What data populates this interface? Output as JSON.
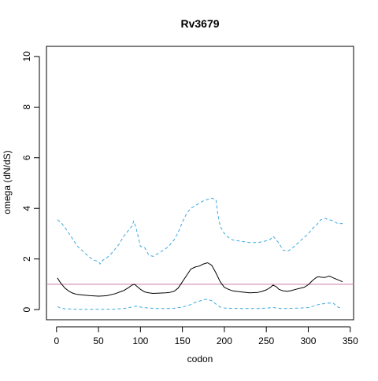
{
  "chart_data": {
    "type": "line",
    "title": "Rv3679",
    "xlabel": "codon",
    "ylabel": "omega (dN/dS)",
    "xlim": [
      -12,
      354
    ],
    "ylim": [
      -0.4,
      10.4
    ],
    "x_ticks": [
      0,
      50,
      100,
      150,
      200,
      250,
      300,
      350
    ],
    "y_ticks": [
      0,
      2,
      4,
      6,
      8,
      10
    ],
    "grid": false,
    "legend": "none",
    "reference_line": {
      "y": 1,
      "color": "#cc79a7"
    },
    "series": [
      {
        "style": "solid",
        "color": "#000000",
        "x": [
          1,
          5,
          10,
          15,
          20,
          25,
          30,
          40,
          50,
          55,
          60,
          70,
          80,
          85,
          90,
          93,
          95,
          100,
          105,
          110,
          115,
          120,
          130,
          135,
          140,
          145,
          150,
          155,
          160,
          165,
          170,
          175,
          180,
          185,
          190,
          195,
          200,
          205,
          210,
          220,
          230,
          240,
          245,
          250,
          255,
          258,
          262,
          265,
          270,
          275,
          280,
          285,
          290,
          295,
          300,
          305,
          310,
          313,
          315,
          320,
          325,
          330,
          335,
          341
        ],
        "y": [
          1.25,
          1.05,
          0.85,
          0.72,
          0.64,
          0.6,
          0.58,
          0.55,
          0.53,
          0.54,
          0.55,
          0.63,
          0.75,
          0.85,
          0.97,
          1.0,
          0.94,
          0.8,
          0.7,
          0.66,
          0.64,
          0.65,
          0.66,
          0.68,
          0.72,
          0.85,
          1.1,
          1.35,
          1.6,
          1.68,
          1.72,
          1.8,
          1.85,
          1.75,
          1.45,
          1.1,
          0.88,
          0.8,
          0.74,
          0.7,
          0.66,
          0.68,
          0.72,
          0.78,
          0.88,
          0.97,
          0.9,
          0.8,
          0.74,
          0.72,
          0.75,
          0.8,
          0.84,
          0.88,
          0.98,
          1.15,
          1.28,
          1.3,
          1.28,
          1.27,
          1.33,
          1.25,
          1.18,
          1.1
        ]
      },
      {
        "style": "dashed",
        "color": "#3fa9df",
        "x": [
          1,
          5,
          10,
          15,
          20,
          25,
          30,
          35,
          40,
          45,
          50,
          52,
          55,
          60,
          65,
          70,
          75,
          80,
          85,
          90,
          92,
          95,
          98,
          100,
          105,
          110,
          115,
          120,
          125,
          130,
          135,
          140,
          145,
          150,
          155,
          160,
          165,
          170,
          175,
          180,
          185,
          190,
          192,
          195,
          200,
          205,
          210,
          220,
          230,
          240,
          245,
          250,
          255,
          258,
          262,
          265,
          270,
          275,
          280,
          285,
          290,
          295,
          300,
          305,
          310,
          315,
          320,
          325,
          330,
          335,
          341
        ],
        "y": [
          3.55,
          3.45,
          3.25,
          3.0,
          2.75,
          2.5,
          2.35,
          2.2,
          2.05,
          1.95,
          1.9,
          1.8,
          1.95,
          2.05,
          2.2,
          2.4,
          2.6,
          2.9,
          3.1,
          3.3,
          3.5,
          3.2,
          2.8,
          2.5,
          2.45,
          2.15,
          2.1,
          2.2,
          2.3,
          2.4,
          2.55,
          2.75,
          3.05,
          3.45,
          3.8,
          4.0,
          4.1,
          4.2,
          4.3,
          4.35,
          4.4,
          4.35,
          3.8,
          3.3,
          3.0,
          2.85,
          2.75,
          2.7,
          2.65,
          2.65,
          2.68,
          2.72,
          2.78,
          2.9,
          2.75,
          2.62,
          2.35,
          2.3,
          2.4,
          2.55,
          2.7,
          2.85,
          3.0,
          3.2,
          3.35,
          3.55,
          3.6,
          3.55,
          3.5,
          3.4,
          3.4
        ]
      },
      {
        "style": "dashed",
        "color": "#3fa9df",
        "x": [
          1,
          5,
          10,
          20,
          30,
          40,
          50,
          60,
          70,
          80,
          90,
          95,
          100,
          110,
          120,
          130,
          140,
          150,
          160,
          165,
          170,
          175,
          180,
          185,
          190,
          195,
          200,
          210,
          220,
          230,
          240,
          250,
          258,
          265,
          270,
          280,
          290,
          300,
          305,
          310,
          315,
          320,
          325,
          330,
          335,
          341
        ],
        "y": [
          0.12,
          0.06,
          0.03,
          0.02,
          0.01,
          0.01,
          0.01,
          0.01,
          0.02,
          0.04,
          0.1,
          0.14,
          0.1,
          0.06,
          0.04,
          0.04,
          0.05,
          0.1,
          0.2,
          0.28,
          0.33,
          0.4,
          0.4,
          0.35,
          0.22,
          0.1,
          0.06,
          0.05,
          0.04,
          0.04,
          0.04,
          0.06,
          0.08,
          0.05,
          0.04,
          0.05,
          0.06,
          0.08,
          0.12,
          0.18,
          0.22,
          0.24,
          0.26,
          0.25,
          0.1,
          0.05
        ]
      }
    ]
  }
}
